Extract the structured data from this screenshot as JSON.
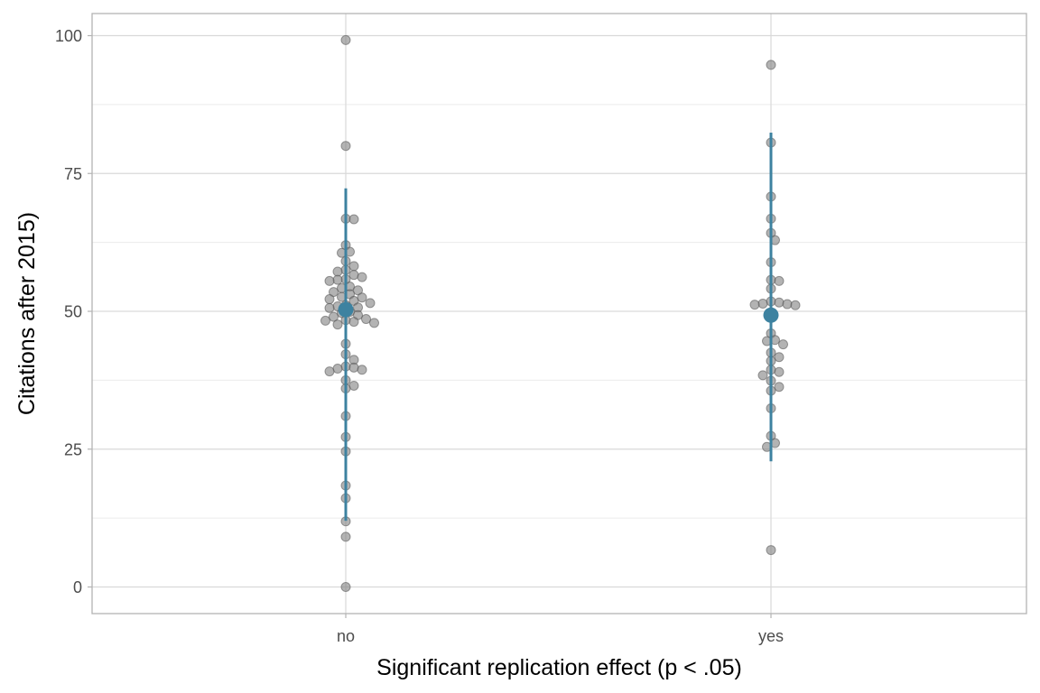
{
  "chart_data": {
    "type": "scatter",
    "title": "",
    "xlabel": "Significant replication effect (p < .05)",
    "ylabel": "Citations after 2015)",
    "categories": [
      "no",
      "yes"
    ],
    "ylim": [
      -5,
      104
    ],
    "yticks": [
      0,
      25,
      50,
      75,
      100
    ],
    "grid": true,
    "colors": {
      "point": "#808080",
      "summary": "#3d82a0",
      "grid": "#d9d9d9",
      "panel_border": "#b3b3b3"
    },
    "groups": [
      {
        "category": "no",
        "mean": 50.3,
        "range": [
          12.0,
          72.3
        ],
        "points": [
          99.2,
          80.0,
          66.7,
          66.8,
          62.0,
          60.6,
          60.8,
          59.1,
          58.2,
          57.5,
          57.2,
          56.6,
          56.2,
          55.8,
          55.7,
          55.5,
          54.5,
          54.2,
          53.8,
          53.5,
          53.1,
          52.6,
          52.5,
          52.2,
          51.9,
          51.5,
          51.1,
          50.9,
          50.7,
          50.6,
          49.9,
          49.7,
          49.3,
          49.0,
          48.6,
          48.4,
          48.3,
          48.1,
          47.9,
          47.6,
          44.1,
          42.2,
          41.2,
          40.0,
          39.8,
          39.6,
          39.4,
          39.1,
          37.5,
          36.5,
          36.0,
          31.0,
          27.2,
          24.6,
          18.4,
          16.1,
          11.9,
          9.1,
          0.0
        ]
      },
      {
        "category": "yes",
        "mean": 49.3,
        "range": [
          22.8,
          82.4
        ],
        "points": [
          94.7,
          80.6,
          70.8,
          66.8,
          64.2,
          62.9,
          58.9,
          55.7,
          55.5,
          54.1,
          51.8,
          51.6,
          51.4,
          51.3,
          51.2,
          51.1,
          49.7,
          46.0,
          44.8,
          44.6,
          44.0,
          42.5,
          41.7,
          41.0,
          39.4,
          39.0,
          38.4,
          37.4,
          36.3,
          35.6,
          32.4,
          27.4,
          26.1,
          25.4,
          6.7
        ]
      }
    ]
  }
}
